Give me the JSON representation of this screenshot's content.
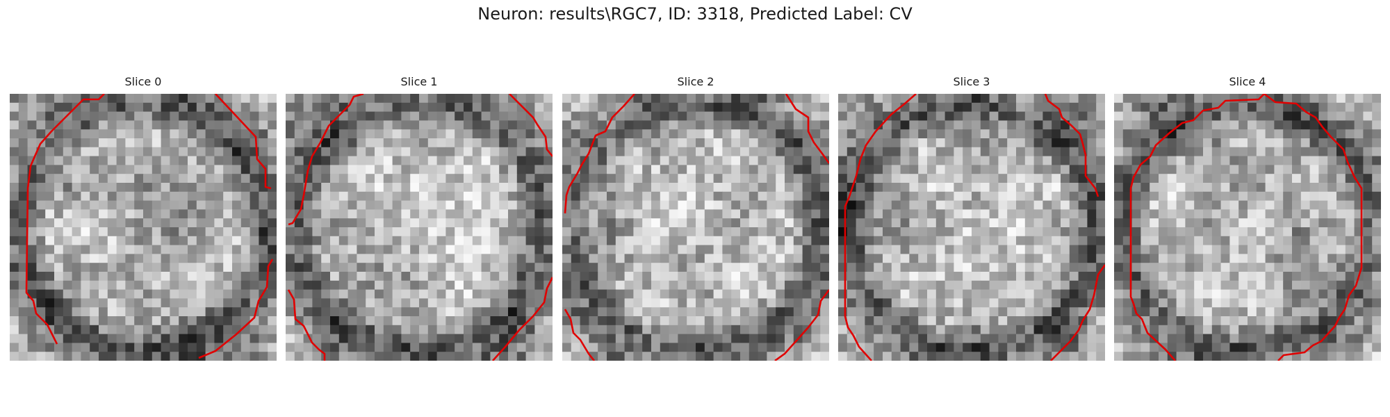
{
  "figure": {
    "suptitle": "Neuron: results\\RGC7, ID: 3318, Predicted Label: CV"
  },
  "panels": [
    {
      "title": "Slice 0"
    },
    {
      "title": "Slice 1"
    },
    {
      "title": "Slice 2"
    },
    {
      "title": "Slice 3"
    },
    {
      "title": "Slice 4"
    }
  ],
  "colors": {
    "contour": "#e00000",
    "background": "#ffffff"
  }
}
